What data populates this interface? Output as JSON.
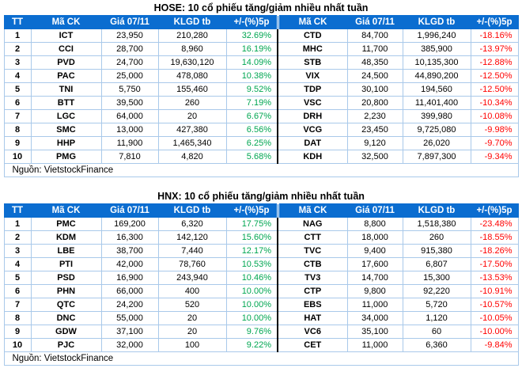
{
  "colors": {
    "header_bg": "#0b6dd0",
    "grid_border": "#a9c9ea",
    "positive": "#00a651",
    "negative": "#ff0000",
    "half_divider": "#000000"
  },
  "chart_data": [
    {
      "type": "table",
      "title": "HOSE: 10 cổ phiếu tăng/giảm nhiều nhất tuần",
      "columns": [
        "TT",
        "Mã CK",
        "Giá 07/11",
        "KLGD tb",
        "+/-(%)5p",
        "Mã CK",
        "Giá 07/11",
        "KLGD tb",
        "+/-(%)5p"
      ],
      "rows": [
        [
          "1",
          "ICT",
          "23,950",
          "210,280",
          "32.69%",
          "CTD",
          "84,700",
          "1,996,240",
          "-18.16%"
        ],
        [
          "2",
          "CCI",
          "28,700",
          "8,960",
          "16.19%",
          "MHC",
          "11,700",
          "385,900",
          "-13.97%"
        ],
        [
          "3",
          "PVD",
          "24,700",
          "19,630,120",
          "14.09%",
          "STB",
          "48,350",
          "10,135,300",
          "-12.88%"
        ],
        [
          "4",
          "PAC",
          "25,000",
          "478,080",
          "10.38%",
          "VIX",
          "24,500",
          "44,890,200",
          "-12.50%"
        ],
        [
          "5",
          "TNI",
          "5,750",
          "155,460",
          "9.52%",
          "TDP",
          "30,100",
          "194,560",
          "-12.50%"
        ],
        [
          "6",
          "BTT",
          "39,500",
          "260",
          "7.19%",
          "VSC",
          "20,800",
          "11,401,400",
          "-10.34%"
        ],
        [
          "7",
          "LGC",
          "64,000",
          "20",
          "6.67%",
          "DRH",
          "2,230",
          "399,980",
          "-10.08%"
        ],
        [
          "8",
          "SMC",
          "13,000",
          "427,380",
          "6.56%",
          "VCG",
          "23,450",
          "9,725,080",
          "-9.98%"
        ],
        [
          "9",
          "HHP",
          "11,900",
          "1,465,340",
          "6.25%",
          "DAT",
          "9,120",
          "26,020",
          "-9.70%"
        ],
        [
          "10",
          "PMG",
          "7,810",
          "4,820",
          "5.68%",
          "KDH",
          "32,500",
          "7,897,300",
          "-9.34%"
        ]
      ],
      "source": "Nguồn: VietstockFinance"
    },
    {
      "type": "table",
      "title": "HNX: 10 cổ phiếu tăng/giảm nhiều nhất tuần",
      "columns": [
        "TT",
        "Mã CK",
        "Giá 07/11",
        "KLGD tb",
        "+/-(%)5p",
        "Mã CK",
        "Giá 07/11",
        "KLGD tb",
        "+/-(%)5p"
      ],
      "rows": [
        [
          "1",
          "PMC",
          "169,200",
          "6,320",
          "17.75%",
          "NAG",
          "8,800",
          "1,518,380",
          "-23.48%"
        ],
        [
          "2",
          "KDM",
          "16,300",
          "142,120",
          "15.60%",
          "CTT",
          "18,000",
          "260",
          "-18.55%"
        ],
        [
          "3",
          "LBE",
          "38,700",
          "7,440",
          "12.17%",
          "TVC",
          "9,400",
          "915,380",
          "-18.26%"
        ],
        [
          "4",
          "PTI",
          "42,000",
          "78,760",
          "10.53%",
          "CTB",
          "17,600",
          "6,807",
          "-17.50%"
        ],
        [
          "5",
          "PSD",
          "16,900",
          "243,940",
          "10.46%",
          "TV3",
          "14,700",
          "15,300",
          "-13.53%"
        ],
        [
          "6",
          "PHN",
          "66,000",
          "400",
          "10.00%",
          "CTP",
          "9,800",
          "92,220",
          "-10.91%"
        ],
        [
          "7",
          "QTC",
          "24,200",
          "520",
          "10.00%",
          "EBS",
          "11,000",
          "5,720",
          "-10.57%"
        ],
        [
          "8",
          "DNC",
          "55,000",
          "20",
          "10.00%",
          "HAT",
          "34,000",
          "1,120",
          "-10.05%"
        ],
        [
          "9",
          "GDW",
          "37,100",
          "20",
          "9.76%",
          "VC6",
          "35,100",
          "60",
          "-10.00%"
        ],
        [
          "10",
          "PJC",
          "32,000",
          "100",
          "9.22%",
          "CET",
          "11,000",
          "6,360",
          "-9.84%"
        ]
      ],
      "source": "Nguồn: VietstockFinance"
    }
  ]
}
